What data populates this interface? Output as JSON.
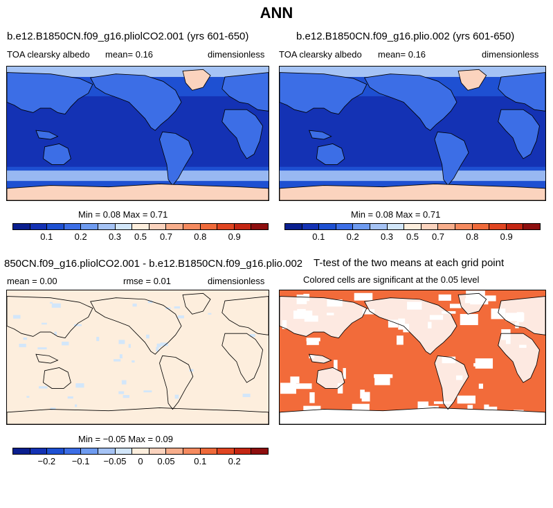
{
  "page": {
    "title": "ANN"
  },
  "panels": [
    {
      "title": "b.e12.B1850CN.f09_g16.pliolCO2.001 (yrs 601-650)",
      "left_label": "TOA clearsky albedo",
      "center_label": "mean=    0.16",
      "right_label": "dimensionless",
      "minmax": "Min =   0.08 Max =   0.71",
      "colorbar_ticks": [
        "0.1",
        "0.2",
        "0.3",
        "0.5",
        "0.7",
        "0.8",
        "0.9"
      ],
      "fill": "albedo"
    },
    {
      "title": "b.e12.B1850CN.f09_g16.plio.002 (yrs 601-650)",
      "left_label": "TOA clearsky albedo",
      "center_label": "mean=    0.16",
      "right_label": "dimensionless",
      "minmax": "Min =   0.08 Max =   0.71",
      "colorbar_ticks": [
        "0.1",
        "0.2",
        "0.3",
        "0.5",
        "0.7",
        "0.8",
        "0.9"
      ],
      "fill": "albedo"
    },
    {
      "title": "850CN.f09_g16.pliolCO2.001 - b.e12.B1850CN.f09_g16.plio.002",
      "left_label": "mean =   0.00",
      "center_label": "rmse =   0.01",
      "right_label": "dimensionless",
      "minmax": "Min =  −0.05 Max =   0.09",
      "colorbar_ticks": [
        "−0.2",
        "−0.1",
        "−0.05",
        "0",
        "0.05",
        "0.1",
        "0.2"
      ],
      "fill": "difference"
    },
    {
      "title": "T-test of the two means at each grid point",
      "subtitle": "Colored cells are significant at the 0.05 level",
      "fill": "ttest"
    }
  ],
  "colorbar_colors": [
    "#0a1f8f",
    "#1432b4",
    "#1e50d2",
    "#3c6ee6",
    "#6e9bf0",
    "#a5c3f5",
    "#d2e6fa",
    "#fdeedd",
    "#fbd3be",
    "#f8ae8c",
    "#f58a5f",
    "#ef6a3a",
    "#e04521",
    "#c42613",
    "#8e0f0f"
  ],
  "colors": {
    "albedo_ocean_dark": "#1432b4",
    "albedo_ocean_mid": "#1e50d2",
    "albedo_land": "#3c6ee6",
    "albedo_high": "#a5c3f5",
    "albedo_ice": "#fbd3be",
    "diff_background": "#fdeedd",
    "diff_land": "#d2e6fa",
    "ttest_significant": "#f26b3a"
  }
}
